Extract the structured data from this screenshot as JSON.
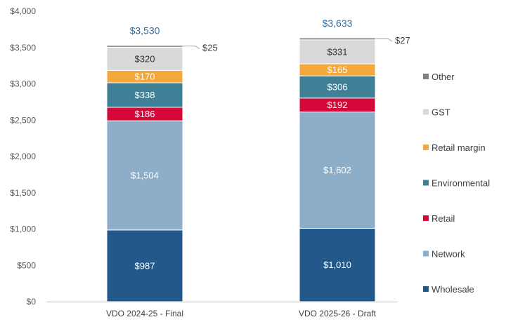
{
  "chart_data": {
    "type": "bar",
    "stacked": true,
    "categories": [
      "VDO 2024-25 - Final",
      "VDO 2025-26 - Draft"
    ],
    "ylim": [
      0,
      4000
    ],
    "yticks": [
      0,
      500,
      1000,
      1500,
      2000,
      2500,
      3000,
      3500,
      4000
    ],
    "ytick_labels": [
      "$0",
      "$500",
      "$1,000",
      "$1,500",
      "$2,000",
      "$2,500",
      "$3,000",
      "$3,500",
      "$4,000"
    ],
    "grid": false,
    "legend_position": "right",
    "series": [
      {
        "name": "Wholesale",
        "color": "#23598a",
        "label_color": "#ffffff",
        "values": [
          987,
          1010
        ],
        "labels": [
          "$987",
          "$1,010"
        ]
      },
      {
        "name": "Network",
        "color": "#8eadc8",
        "label_color": "#ffffff",
        "values": [
          1504,
          1602
        ],
        "labels": [
          "$1,504",
          "$1,602"
        ]
      },
      {
        "name": "Retail",
        "color": "#d5083a",
        "label_color": "#ffffff",
        "values": [
          186,
          192
        ],
        "labels": [
          "$186",
          "$192"
        ]
      },
      {
        "name": "Environmental",
        "color": "#3f8097",
        "label_color": "#ffffff",
        "values": [
          338,
          306
        ],
        "labels": [
          "$338",
          "$306"
        ]
      },
      {
        "name": "Retail margin",
        "color": "#f4a83c",
        "label_color": "#ffffff",
        "values": [
          170,
          165
        ],
        "labels": [
          "$170",
          "$165"
        ]
      },
      {
        "name": "GST",
        "color": "#d9d9d9",
        "label_color": "#333333",
        "values": [
          320,
          331
        ],
        "labels": [
          "$320",
          "$331"
        ]
      },
      {
        "name": "Other",
        "color": "#808080",
        "label_color": "#333333",
        "values": [
          25,
          27
        ],
        "labels": [
          "$25",
          "$27"
        ]
      }
    ],
    "totals": [
      3530,
      3633
    ],
    "total_labels": [
      "$3,530",
      "$3,633"
    ],
    "total_label_color": "#2e6da4"
  }
}
